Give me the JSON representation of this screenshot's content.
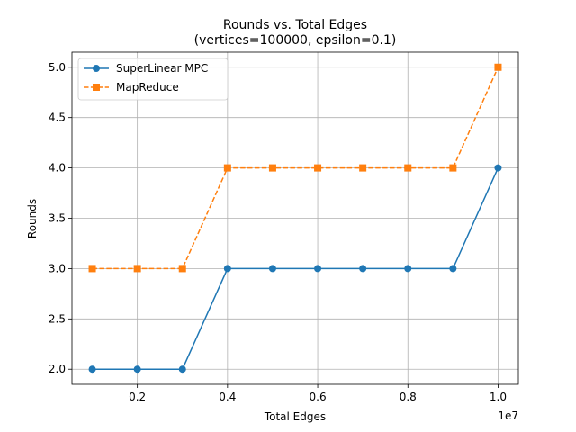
{
  "chart_data": {
    "type": "line",
    "title": "Rounds vs. Total Edges",
    "subtitle": "(vertices=100000, epsilon=0.1)",
    "xlabel": "Total Edges",
    "ylabel": "Rounds",
    "x_offset_label": "1e7",
    "x": [
      1000000,
      2000000,
      3000000,
      4000000,
      5000000,
      6000000,
      7000000,
      8000000,
      9000000,
      10000000
    ],
    "xlim": [
      550000,
      10450000
    ],
    "ylim": [
      1.85,
      5.15
    ],
    "x_ticks": [
      2000000,
      4000000,
      6000000,
      8000000,
      10000000
    ],
    "x_tick_labels": [
      "0.2",
      "0.4",
      "0.6",
      "0.8",
      "1.0"
    ],
    "y_ticks": [
      2.0,
      2.5,
      3.0,
      3.5,
      4.0,
      4.5,
      5.0
    ],
    "y_tick_labels": [
      "2.0",
      "2.5",
      "3.0",
      "3.5",
      "4.0",
      "4.5",
      "5.0"
    ],
    "grid": true,
    "legend_position": "upper-left",
    "series": [
      {
        "name": "SuperLinear MPC",
        "values": [
          2,
          2,
          2,
          3,
          3,
          3,
          3,
          3,
          3,
          4
        ],
        "color": "#1f77b4",
        "marker": "circle",
        "linestyle": "solid"
      },
      {
        "name": "MapReduce",
        "values": [
          3,
          3,
          3,
          4,
          4,
          4,
          4,
          4,
          4,
          5
        ],
        "color": "#ff7f0e",
        "marker": "square",
        "linestyle": "dashed"
      }
    ]
  }
}
